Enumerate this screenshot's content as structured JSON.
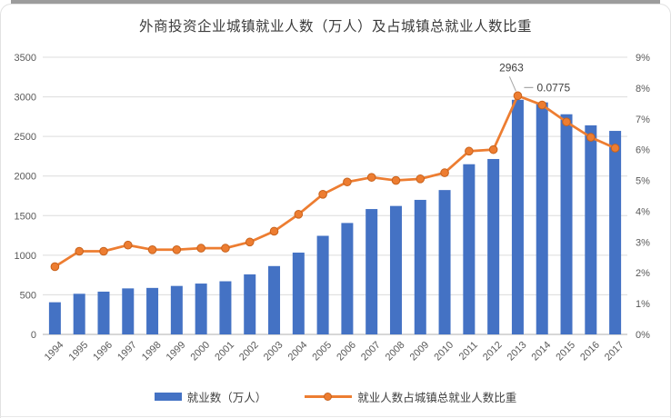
{
  "chart_data": {
    "type": "combo-bar-line",
    "title": "外商投资企业城镇就业人数（万人）及占城镇总就业人数比重",
    "categories": [
      "1994",
      "1995",
      "1996",
      "1997",
      "1998",
      "1999",
      "2000",
      "2001",
      "2002",
      "2003",
      "2004",
      "2005",
      "2006",
      "2007",
      "2008",
      "2009",
      "2010",
      "2011",
      "2012",
      "2013",
      "2014",
      "2015",
      "2016",
      "2017"
    ],
    "series": [
      {
        "name": "就业数（万人）",
        "type": "bar",
        "axis": "left",
        "values": [
          406,
          513,
          540,
          581,
          587,
          612,
          642,
          671,
          758,
          863,
          1033,
          1245,
          1407,
          1583,
          1622,
          1699,
          1823,
          2149,
          2215,
          2963,
          2930,
          2780,
          2640,
          2570
        ]
      },
      {
        "name": "就业人数占城镇总就业人数比重",
        "type": "line",
        "axis": "right",
        "values_percent": [
          2.2,
          2.7,
          2.7,
          2.9,
          2.75,
          2.75,
          2.8,
          2.8,
          3.0,
          3.35,
          3.9,
          4.55,
          4.95,
          5.1,
          5.0,
          5.05,
          5.25,
          5.95,
          6.0,
          7.75,
          7.45,
          6.9,
          6.4,
          6.05
        ]
      }
    ],
    "left_axis": {
      "min": 0,
      "max": 3500,
      "step": 500,
      "ticks": [
        "0",
        "500",
        "1000",
        "1500",
        "2000",
        "2500",
        "3000",
        "3500"
      ]
    },
    "right_axis": {
      "min": 0,
      "max": 9,
      "step": 1,
      "ticks": [
        "0%",
        "1%",
        "2%",
        "3%",
        "4%",
        "5%",
        "6%",
        "7%",
        "8%",
        "9%"
      ]
    },
    "annotations": [
      {
        "text": "2963",
        "target_category": "2013",
        "target_series": "就业数（万人）"
      },
      {
        "text": "0.0775",
        "target_category": "2013",
        "target_series": "就业人数占城镇总就业人数比重"
      }
    ],
    "legend": [
      {
        "label": "就业数（万人）",
        "swatch": "bar"
      },
      {
        "label": "就业人数占城镇总就业人数比重",
        "swatch": "line-marker"
      }
    ],
    "legend_position": "bottom",
    "grid": true,
    "colors": {
      "bar": "#4472C4",
      "line": "#ED7D31",
      "marker_stroke": "#C8621C",
      "grid": "#DCDCDC",
      "axis_line": "#BFBFBF",
      "tick_text": "#595959",
      "title_text": "#3C3C3C",
      "annotation_text": "#404040",
      "annotation_leader": "#A6A6A6"
    }
  }
}
